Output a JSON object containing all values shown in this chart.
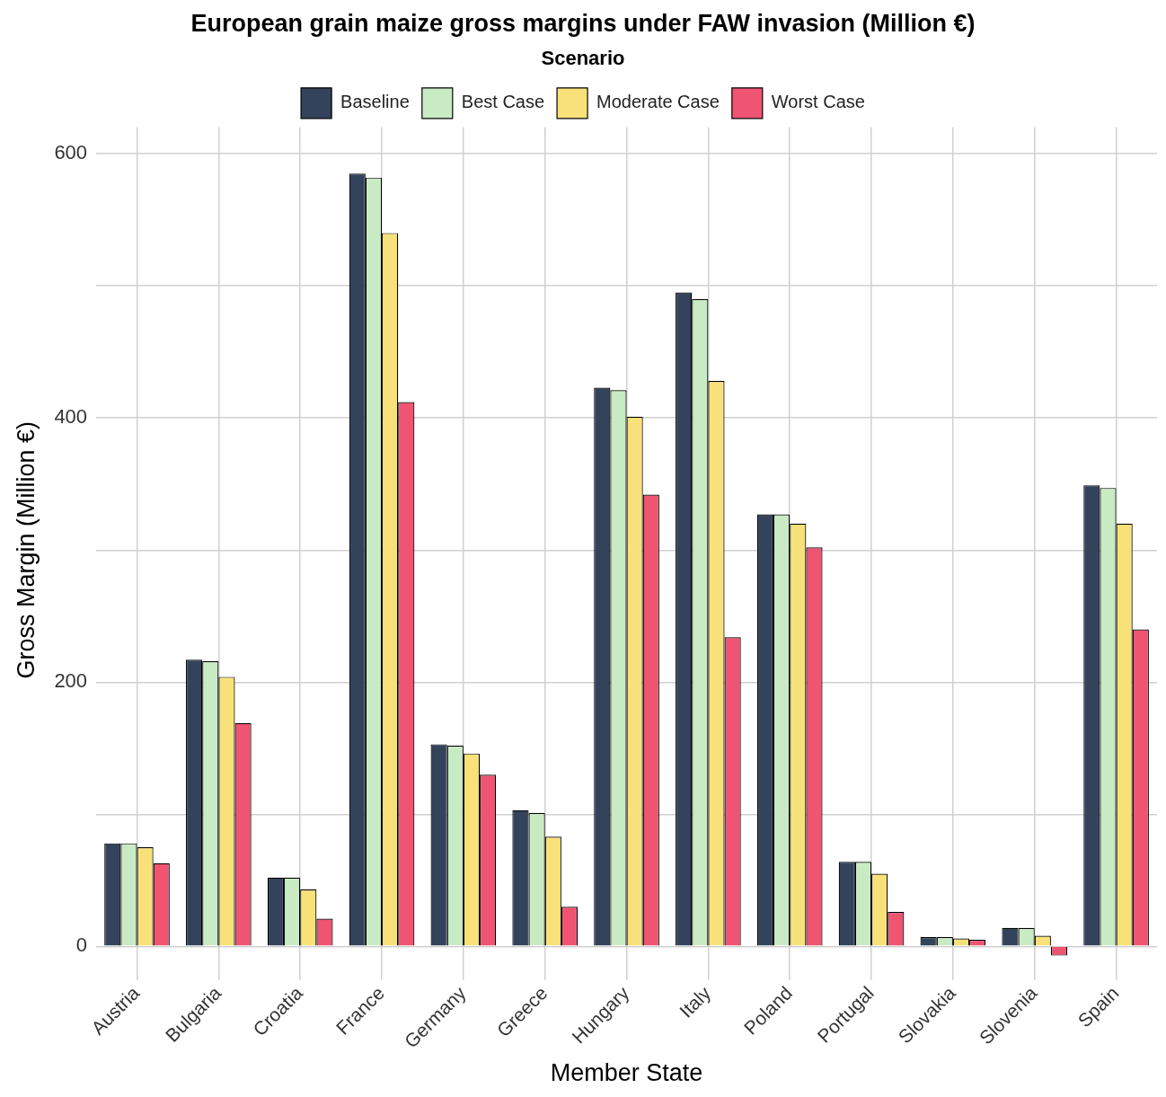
{
  "chart_data": {
    "type": "bar",
    "title": "European grain maize gross margins under FAW invasion (Million €)",
    "xlabel": "Member State",
    "ylabel": "Gross Margin (Million €)",
    "legend_title": "Scenario",
    "legend": "top",
    "categories": [
      "Austria",
      "Bulgaria",
      "Croatia",
      "France",
      "Germany",
      "Greece",
      "Hungary",
      "Italy",
      "Poland",
      "Portugal",
      "Slovakia",
      "Slovenia",
      "Spain"
    ],
    "series": [
      {
        "name": "Baseline",
        "color": "#33435b",
        "values": [
          78,
          217,
          52,
          585,
          153,
          103,
          423,
          495,
          327,
          64,
          7,
          14,
          349
        ]
      },
      {
        "name": "Best Case",
        "color": "#c9ebc4",
        "values": [
          78,
          216,
          52,
          582,
          152,
          101,
          421,
          490,
          327,
          64,
          7,
          14,
          347
        ]
      },
      {
        "name": "Moderate Case",
        "color": "#f9e17a",
        "values": [
          75,
          204,
          43,
          540,
          146,
          83,
          401,
          428,
          320,
          55,
          6,
          8,
          320
        ]
      },
      {
        "name": "Worst Case",
        "color": "#ef5472",
        "values": [
          63,
          169,
          21,
          412,
          130,
          30,
          342,
          234,
          302,
          26,
          5,
          -7,
          240
        ]
      }
    ],
    "ylim": [
      -20,
      620
    ],
    "yticks": [
      0,
      {
        "value": 100,
        "label": null
      },
      200,
      {
        "value": 300,
        "label": null
      },
      400,
      {
        "value": 500,
        "label": null
      },
      600
    ],
    "grid": true
  }
}
